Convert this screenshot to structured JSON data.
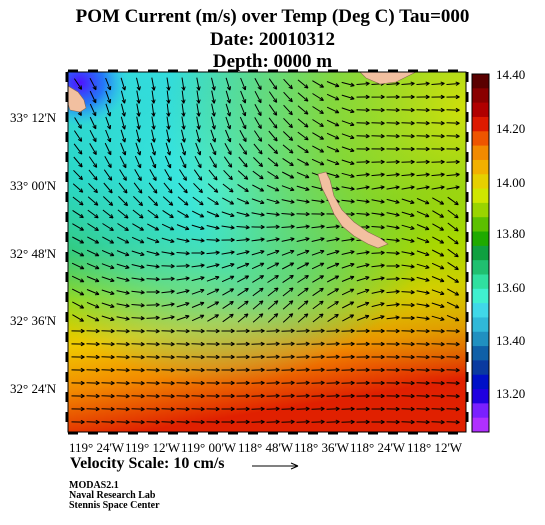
{
  "title": {
    "line1": "POM Current (m/s) over Temp (Deg C)  Tau=000",
    "line2": "Date: 20010312",
    "line3": "Depth: 0000 m"
  },
  "lat_labels": [
    "33° 12'N",
    "33° 00'N",
    "32° 48'N",
    "32° 36'N",
    "32° 24'N"
  ],
  "lon_labels": [
    "119° 24'W",
    "119° 12'W",
    "119° 00'W",
    "118° 48'W",
    "118° 36'W",
    "118° 24'W",
    "118° 12'W"
  ],
  "colorbar": {
    "labels": [
      "14.40",
      "14.20",
      "14.00",
      "13.80",
      "13.60",
      "13.40",
      "13.20"
    ],
    "colors": [
      "#5a0000",
      "#8a0000",
      "#b00000",
      "#dd1a00",
      "#ee5500",
      "#f28a00",
      "#f2b000",
      "#e6d000",
      "#cfe600",
      "#9ad400",
      "#5cc000",
      "#1faa00",
      "#10a040",
      "#20c070",
      "#30e0a0",
      "#40f0d0",
      "#40d8e8",
      "#30b8d8",
      "#2090c0",
      "#1060a8",
      "#0a3aa0",
      "#0010c8",
      "#2000e0",
      "#7a20ff",
      "#b030ff"
    ]
  },
  "velocity_scale": {
    "label": "Velocity Scale:  10 cm/s"
  },
  "footer": {
    "line1": "MODAS2.1",
    "line2": "Naval Research Lab",
    "line3": "Stennis Space Center"
  }
}
